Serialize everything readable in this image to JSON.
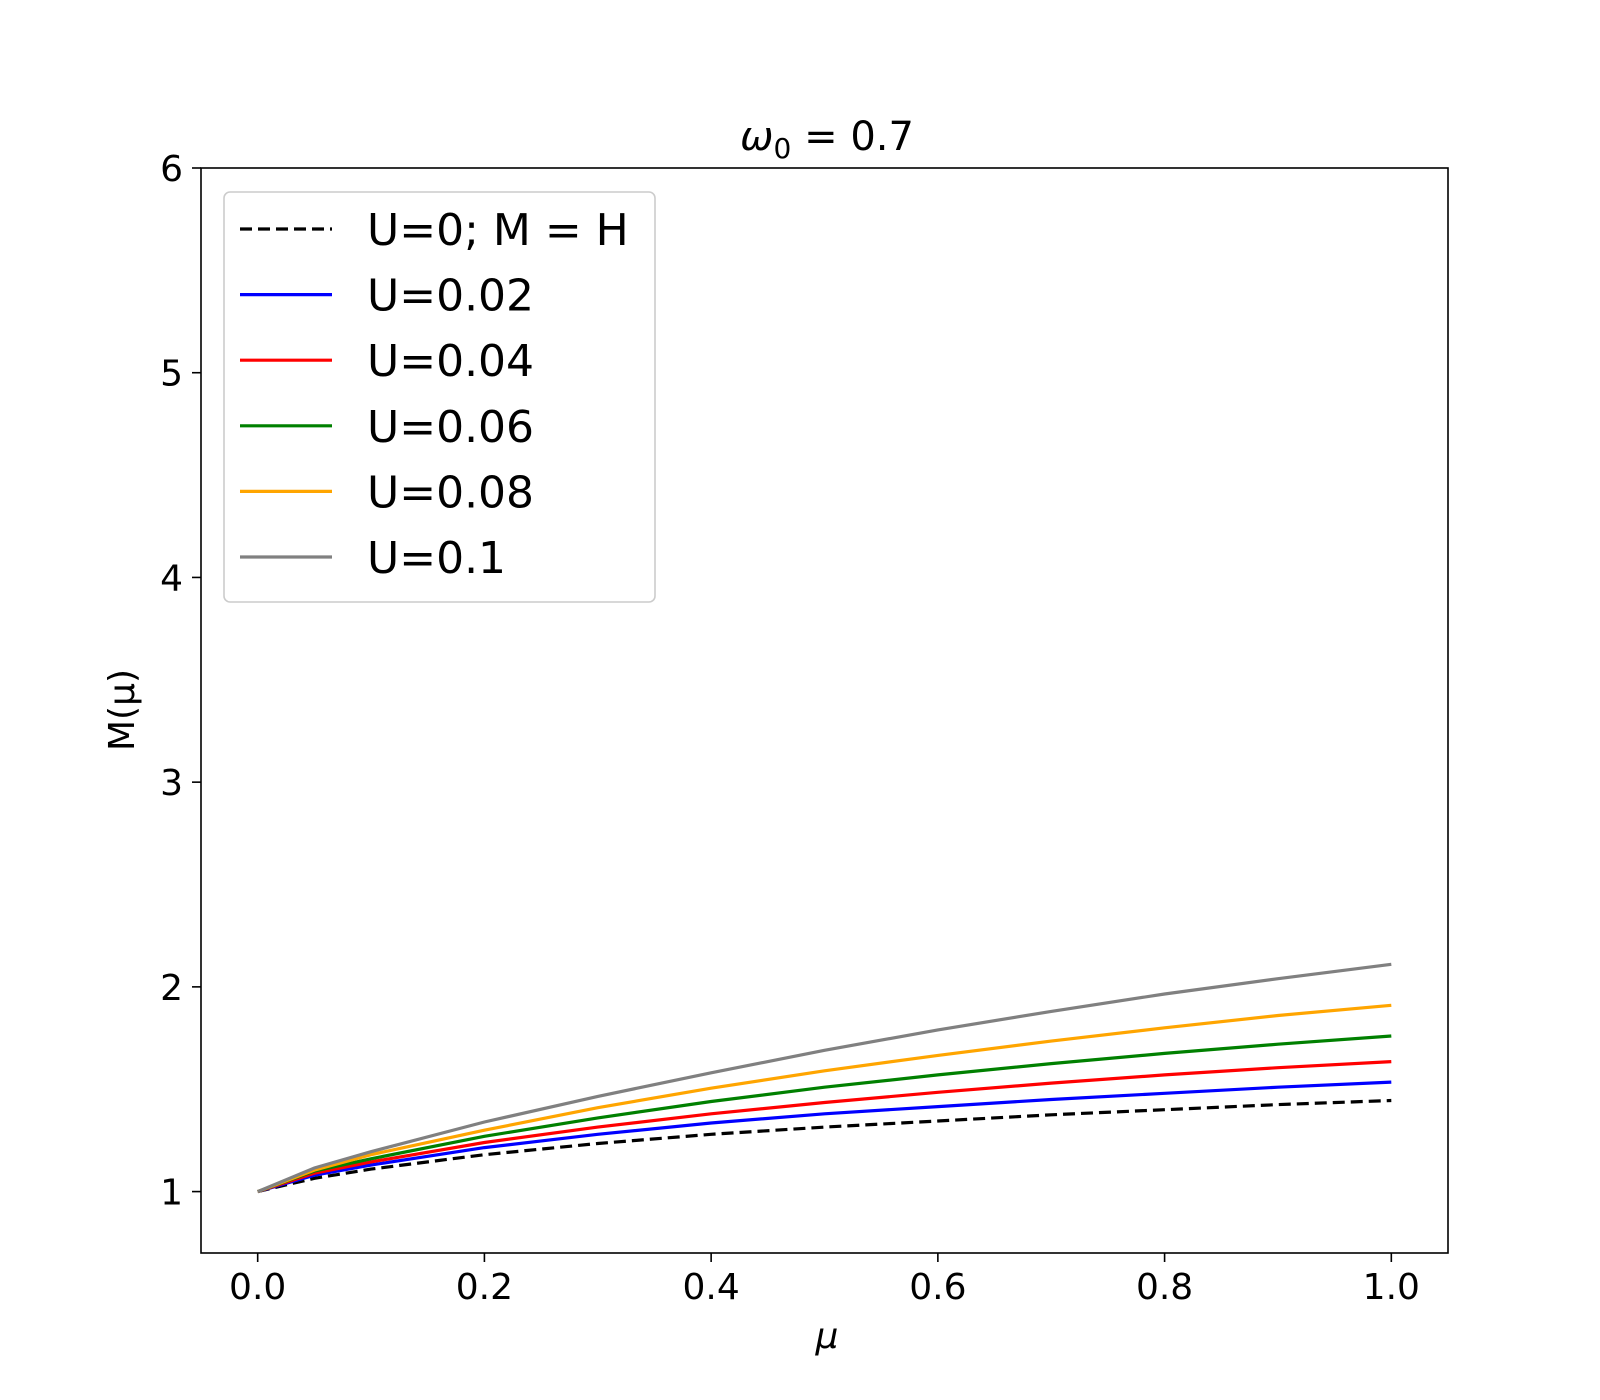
{
  "chart_data": {
    "type": "line",
    "title": "ω0 = 0.7",
    "title_main": "ω",
    "title_sub": "0",
    "title_rest": " = 0.7",
    "xlabel": "μ",
    "ylabel": "M(μ)",
    "xlim": [
      -0.05,
      1.05
    ],
    "ylim": [
      0.7,
      6.0
    ],
    "xticks": [
      0.0,
      0.2,
      0.4,
      0.6,
      0.8,
      1.0
    ],
    "xtick_labels": [
      "0.0",
      "0.2",
      "0.4",
      "0.6",
      "0.8",
      "1.0"
    ],
    "yticks": [
      1,
      2,
      3,
      4,
      5,
      6
    ],
    "ytick_labels": [
      "1",
      "2",
      "3",
      "4",
      "5",
      "6"
    ],
    "grid": false,
    "legend_position": "top-left",
    "x": [
      0.0,
      0.05,
      0.1,
      0.2,
      0.3,
      0.4,
      0.5,
      0.6,
      0.7,
      0.8,
      0.9,
      1.0
    ],
    "series": [
      {
        "name": "U=0; M = H",
        "color": "#000000",
        "dashed": true,
        "values": [
          1.0,
          1.065,
          1.11,
          1.18,
          1.235,
          1.28,
          1.315,
          1.345,
          1.375,
          1.4,
          1.425,
          1.445
        ]
      },
      {
        "name": "U=0.02",
        "color": "#0000ff",
        "dashed": false,
        "values": [
          1.0,
          1.08,
          1.13,
          1.215,
          1.28,
          1.335,
          1.38,
          1.415,
          1.45,
          1.48,
          1.51,
          1.535
        ]
      },
      {
        "name": "U=0.04",
        "color": "#ff0000",
        "dashed": false,
        "values": [
          1.0,
          1.09,
          1.145,
          1.24,
          1.315,
          1.38,
          1.435,
          1.485,
          1.53,
          1.57,
          1.605,
          1.635
        ]
      },
      {
        "name": "U=0.06",
        "color": "#008000",
        "dashed": false,
        "values": [
          1.0,
          1.1,
          1.16,
          1.27,
          1.36,
          1.44,
          1.51,
          1.57,
          1.625,
          1.675,
          1.72,
          1.76
        ]
      },
      {
        "name": "U=0.08",
        "color": "#ffa500",
        "dashed": false,
        "values": [
          1.0,
          1.105,
          1.18,
          1.3,
          1.41,
          1.505,
          1.59,
          1.665,
          1.735,
          1.8,
          1.86,
          1.91
        ]
      },
      {
        "name": "U=0.1",
        "color": "#808080",
        "dashed": false,
        "values": [
          1.0,
          1.115,
          1.195,
          1.34,
          1.465,
          1.58,
          1.69,
          1.79,
          1.88,
          1.965,
          2.04,
          2.11
        ]
      }
    ]
  }
}
